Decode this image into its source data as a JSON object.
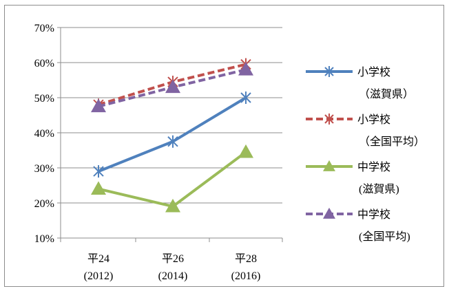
{
  "chart_data": {
    "type": "line",
    "categories": [
      {
        "line1": "平24",
        "line2": "(2012)"
      },
      {
        "line1": "平26",
        "line2": "(2014)"
      },
      {
        "line1": "平28",
        "line2": "(2016)"
      }
    ],
    "ylim": [
      0.1,
      0.7
    ],
    "yticks": [
      "70%",
      "60%",
      "50%",
      "40%",
      "30%",
      "20%",
      "10%"
    ],
    "grid": true,
    "legend_position": "right",
    "series": [
      {
        "name_line1": "小学校",
        "name_line2": "（滋賀県）",
        "values": [
          0.29,
          0.375,
          0.5
        ],
        "color": "#4f81bd",
        "dash": "solid",
        "marker": "asterisk"
      },
      {
        "name_line1": "小学校",
        "name_line2": "（全国平均）",
        "values": [
          0.48,
          0.545,
          0.595
        ],
        "color": "#c0504d",
        "dash": "dashed",
        "marker": "asterisk"
      },
      {
        "name_line1": "中学校",
        "name_line2": "(滋賀県)",
        "values": [
          0.24,
          0.19,
          0.345
        ],
        "color": "#9bbb59",
        "dash": "solid",
        "marker": "triangle"
      },
      {
        "name_line1": "中学校",
        "name_line2": "(全国平均)",
        "values": [
          0.475,
          0.53,
          0.58
        ],
        "color": "#8064a2",
        "dash": "dashed",
        "marker": "triangle"
      }
    ]
  }
}
